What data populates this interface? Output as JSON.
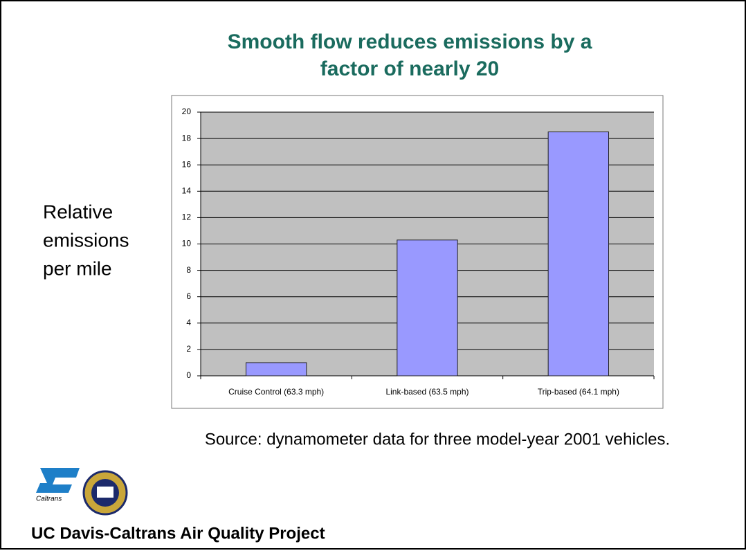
{
  "chart_data": {
    "type": "bar",
    "title": [
      "Smooth flow reduces emissions by a",
      "factor of nearly 20"
    ],
    "y_label": [
      "Relative",
      "emissions",
      "per mile"
    ],
    "categories": [
      "Cruise Control (63.3 mph)",
      "Link-based (63.5 mph)",
      "Trip-based (64.1 mph)"
    ],
    "values": [
      1,
      10.3,
      18.5
    ],
    "color": "#9999ff",
    "ylim": [
      0,
      20
    ],
    "yticks": [
      0,
      2,
      4,
      6,
      8,
      10,
      12,
      14,
      16,
      18,
      20
    ],
    "grid": true
  },
  "source": "Source: dynamometer data for three model-year 2001 vehicles.",
  "footer": "UC Davis-Caltrans Air Quality Project",
  "logo_text": "Caltrans"
}
